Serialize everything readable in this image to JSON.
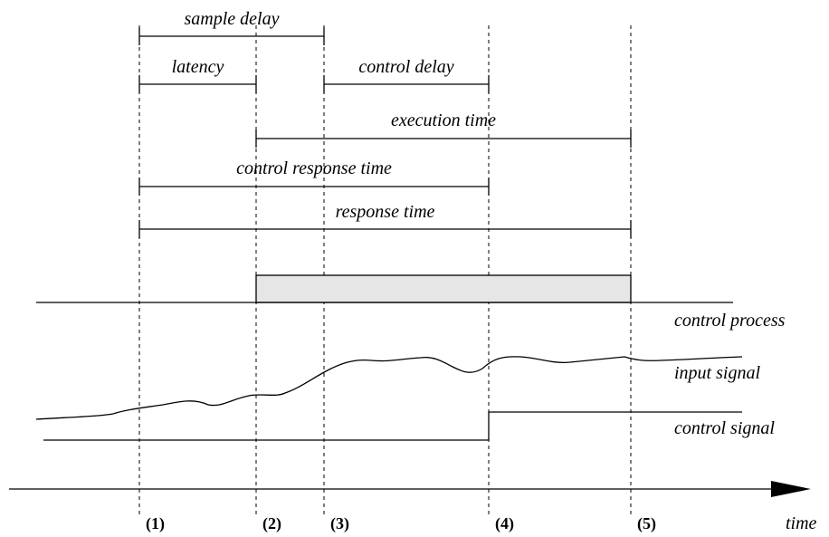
{
  "intervals": [
    {
      "label": "sample delay"
    },
    {
      "label": "latency"
    },
    {
      "label": "control delay"
    },
    {
      "label": "execution time"
    },
    {
      "label": "control response time"
    },
    {
      "label": "response time"
    }
  ],
  "signals": [
    {
      "label": "control process"
    },
    {
      "label": "input signal"
    },
    {
      "label": "control signal"
    }
  ],
  "time_points": [
    "(1)",
    "(2)",
    "(3)",
    "(4)",
    "(5)"
  ],
  "axis_label": "time"
}
